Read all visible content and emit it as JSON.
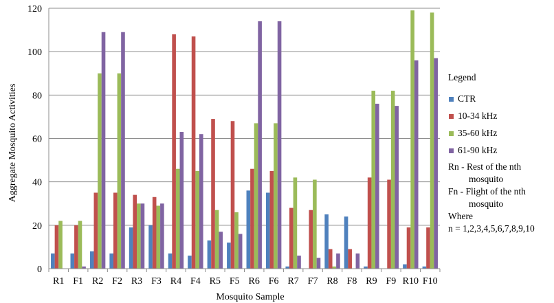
{
  "chart_data": {
    "type": "bar",
    "categories": [
      "R1",
      "F1",
      "R2",
      "F2",
      "R3",
      "F3",
      "R4",
      "F4",
      "R5",
      "F5",
      "R6",
      "F6",
      "R7",
      "F7",
      "R8",
      "F8",
      "R9",
      "F9",
      "R10",
      "F10"
    ],
    "series": [
      {
        "name": "CTR",
        "color": "#4f81bd",
        "values": [
          7,
          7,
          8,
          7,
          19,
          20,
          7,
          6,
          13,
          12,
          36,
          35,
          1,
          0,
          25,
          24,
          1,
          0,
          2,
          1
        ]
      },
      {
        "name": "10-34 kHz",
        "color": "#c0504d",
        "values": [
          20,
          20,
          35,
          35,
          34,
          33,
          108,
          107,
          69,
          68,
          46,
          45,
          28,
          27,
          9,
          9,
          42,
          41,
          19,
          19
        ]
      },
      {
        "name": "35-60 kHz",
        "color": "#9bbb59",
        "values": [
          22,
          22,
          90,
          90,
          30,
          29,
          46,
          45,
          27,
          26,
          67,
          67,
          42,
          41,
          1,
          0,
          82,
          82,
          119,
          118
        ]
      },
      {
        "name": "61-90 kHz",
        "color": "#8064a2",
        "values": [
          0,
          1,
          109,
          109,
          30,
          30,
          63,
          62,
          17,
          16,
          114,
          114,
          6,
          5,
          7,
          7,
          76,
          75,
          96,
          97
        ]
      }
    ],
    "xlabel": "Mosquito Sample",
    "ylabel": "Aggregate Mosquito Activities",
    "ylim": [
      0,
      120
    ],
    "yticks": [
      0,
      20,
      40,
      60,
      80,
      100,
      120
    ],
    "grid": true,
    "legend_position": "right"
  },
  "legend": {
    "title": "Legend",
    "notes": {
      "rn_line1": "Rn - Rest of the nth",
      "rn_line2": "mosquito",
      "fn_line1": "Fn - Flight of the nth",
      "fn_line2": "mosquito",
      "where": "Where",
      "n_values": "n = 1,2,3,4,5,6,7,8,9,10"
    }
  }
}
